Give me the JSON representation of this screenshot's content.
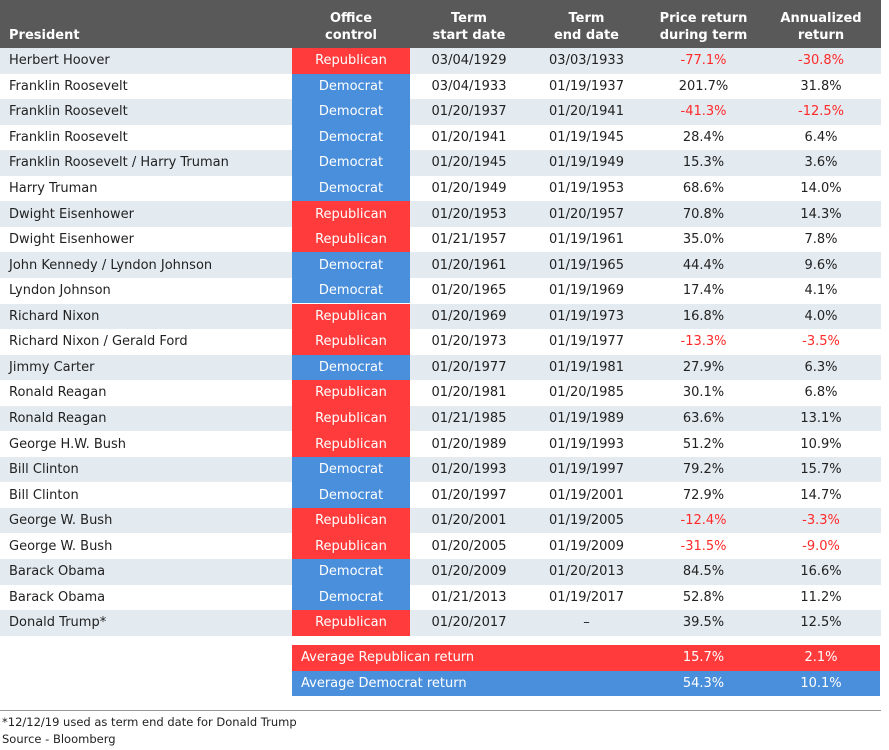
{
  "table": {
    "header": [
      [
        "President"
      ],
      [
        "Office",
        "control"
      ],
      [
        "Term",
        "start date"
      ],
      [
        "Term",
        "end date"
      ],
      [
        "Price return",
        "during term"
      ],
      [
        "Annualized",
        "return"
      ]
    ],
    "rows": [
      [
        "Herbert Hoover",
        "Republican",
        "03/04/1929",
        "03/03/1933",
        "-77.1%",
        "-30.8%"
      ],
      [
        "Franklin Roosevelt",
        "Democrat",
        "03/04/1933",
        "01/19/1937",
        "201.7%",
        "31.8%"
      ],
      [
        "Franklin Roosevelt",
        "Democrat",
        "01/20/1937",
        "01/20/1941",
        "-41.3%",
        "-12.5%"
      ],
      [
        "Franklin Roosevelt",
        "Democrat",
        "01/20/1941",
        "01/19/1945",
        "28.4%",
        "6.4%"
      ],
      [
        "Franklin Roosevelt / Harry Truman",
        "Democrat",
        "01/20/1945",
        "01/19/1949",
        "15.3%",
        "3.6%"
      ],
      [
        "Harry Truman",
        "Democrat",
        "01/20/1949",
        "01/19/1953",
        "68.6%",
        "14.0%"
      ],
      [
        "Dwight Eisenhower",
        "Republican",
        "01/20/1953",
        "01/20/1957",
        "70.8%",
        "14.3%"
      ],
      [
        "Dwight Eisenhower",
        "Republican",
        "01/21/1957",
        "01/19/1961",
        "35.0%",
        "7.8%"
      ],
      [
        "John Kennedy / Lyndon Johnson",
        "Democrat",
        "01/20/1961",
        "01/19/1965",
        "44.4%",
        "9.6%"
      ],
      [
        "Lyndon Johnson",
        "Democrat",
        "01/20/1965",
        "01/19/1969",
        "17.4%",
        "4.1%"
      ],
      [
        "Richard Nixon",
        "Republican",
        "01/20/1969",
        "01/19/1973",
        "16.8%",
        "4.0%"
      ],
      [
        "Richard Nixon / Gerald Ford",
        "Republican",
        "01/20/1973",
        "01/19/1977",
        "-13.3%",
        "-3.5%"
      ],
      [
        "Jimmy Carter",
        "Democrat",
        "01/20/1977",
        "01/19/1981",
        "27.9%",
        "6.3%"
      ],
      [
        "Ronald Reagan",
        "Republican",
        "01/20/1981",
        "01/20/1985",
        "30.1%",
        "6.8%"
      ],
      [
        "Ronald Reagan",
        "Republican",
        "01/21/1985",
        "01/19/1989",
        "63.6%",
        "13.1%"
      ],
      [
        "George H.W. Bush",
        "Republican",
        "01/20/1989",
        "01/19/1993",
        "51.2%",
        "10.9%"
      ],
      [
        "Bill Clinton",
        "Democrat",
        "01/20/1993",
        "01/19/1997",
        "79.2%",
        "15.7%"
      ],
      [
        "Bill Clinton",
        "Democrat",
        "01/20/1997",
        "01/19/2001",
        "72.9%",
        "14.7%"
      ],
      [
        "George W. Bush",
        "Republican",
        "01/20/2001",
        "01/19/2005",
        "-12.4%",
        "-3.3%"
      ],
      [
        "George W. Bush",
        "Republican",
        "01/20/2005",
        "01/19/2009",
        "-31.5%",
        "-9.0%"
      ],
      [
        "Barack Obama",
        "Democrat",
        "01/20/2009",
        "01/20/2013",
        "84.5%",
        "16.6%"
      ],
      [
        "Barack Obama",
        "Democrat",
        "01/21/2013",
        "01/19/2017",
        "52.8%",
        "11.2%"
      ],
      [
        "Donald Trump*",
        "Republican",
        "01/20/2017",
        "–",
        "39.5%",
        "12.5%"
      ]
    ],
    "averages": [
      [
        "Average Republican return",
        "15.7%",
        "2.1%"
      ],
      [
        "Average Democrat return",
        "54.3%",
        "10.1%"
      ]
    ]
  },
  "footnotes": [
    "*12/12/19 used as term end date for Donald Trump",
    "Source - Bloomberg"
  ]
}
